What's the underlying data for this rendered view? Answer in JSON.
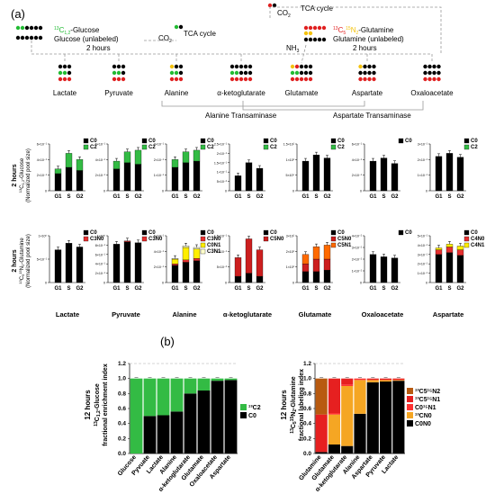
{
  "panel_a": {
    "label": "(a)",
    "glucose_title": "Glucose (unlabeled)",
    "glucose_label_sup": "13",
    "glucose_label_rest": "C",
    "glucose_label_sub": "1,2",
    "glucose_label_tail": "-Glucose",
    "glucose_time": "2 hours",
    "glutamine_title": "Glutamine (unlabeled)",
    "glutamine_label_sup1": "13",
    "glutamine_label_c": "C",
    "glutamine_label_sub1": "5",
    "glutamine_label_sup2": "15",
    "glutamine_label_n": "N",
    "glutamine_label_sub2": "2",
    "glutamine_label_tail": "-Glutamine",
    "glutamine_time": "2 hours",
    "co2": "CO",
    "co2_sub": "2",
    "tca_cycle_1": "TCA cycle",
    "tca_cycle_2": "TCA cycle",
    "nh3": "NH",
    "nh3_sub": "3",
    "metabolites": [
      "Lactate",
      "Pyruvate",
      "Alanine",
      "α-ketoglutarate",
      "Glutamate",
      "Aspartate",
      "Oxaloacetate"
    ],
    "alanine_transaminase": "Alanine Transaminase",
    "aspartate_transaminase": "Aspartate Transaminase",
    "row1_label": "2 hours",
    "row1_axis": "Glucose",
    "row1_axis_sup": "13",
    "row1_axis_c": "C",
    "row1_axis_sub": "1,2",
    "row1_axis_norm": "(Normalized pool size)",
    "row2_label": "2 hours",
    "row2_axis": "Glutamine",
    "row2_axis_sup1": "13",
    "row2_axis_c": "C",
    "row2_axis_sub1": "5",
    "row2_axis_sup2": "15",
    "row2_axis_n": "N",
    "row2_axis_sub2": "2",
    "col_labels": [
      "Lactate",
      "Pyruvate",
      "Alanine",
      "α-ketoglutarate",
      "Glutamate",
      "Oxaloacetate",
      "Aspartate"
    ],
    "phases": [
      "G1",
      "S",
      "G2"
    ]
  },
  "panel_b": {
    "label": "(b)",
    "left_title": "12 hours",
    "left_axis_sup": "13",
    "left_axis_c": "C",
    "left_axis_sub": "1,2",
    "left_axis_tail": "-Glucose",
    "left_axis_line2": "fractional enrichment index",
    "right_title": "12 hours",
    "right_axis_sup1": "13",
    "right_axis_c": "C",
    "right_axis_sub1": "5",
    "right_axis_sup2": "15",
    "right_axis_n": "N",
    "right_axis_sub2": "2",
    "right_axis_tail": "-Glutamine",
    "right_axis_line2": "fractional labeling index"
  },
  "colors": {
    "c0": "#000000",
    "c2": "#33bb44",
    "c3n0": "#e53030",
    "c0n1": "#ffee00",
    "c3n1": "#ffffcc",
    "c5n0": "#cc1f1f",
    "c5n1": "#ff6a00",
    "c4n0": "#e53030",
    "c4n1": "#ffee00",
    "c5n2": "#b85a10",
    "c5n1b": "#e62020",
    "c0n1b": "#ff3333",
    "cn0": "#f5a623",
    "c0n0": "#000000",
    "red_dot": "#e02020",
    "green_dot": "#22bb33",
    "yellow_dot": "#f4c20d"
  },
  "chart_data": [
    {
      "type": "bar",
      "id": "a-glc-lactate",
      "categories": [
        "G1",
        "S",
        "G2"
      ],
      "ylim": [
        0,
        6
      ],
      "y_tick_labels": [
        "0",
        "2×10⁻¹",
        "4×10⁻¹",
        "6×10⁻¹"
      ],
      "series": [
        {
          "name": "C0",
          "values": [
            2.2,
            3.0,
            2.6
          ]
        },
        {
          "name": "C2",
          "values": [
            0.6,
            1.8,
            1.4
          ]
        }
      ]
    },
    {
      "type": "bar",
      "id": "a-glc-pyruvate",
      "categories": [
        "G1",
        "S",
        "G2"
      ],
      "ylim": [
        0,
        6
      ],
      "y_tick_labels": [
        "0",
        "2×10⁻¹",
        "4×10⁻¹",
        "6×10⁻¹"
      ],
      "series": [
        {
          "name": "C0",
          "values": [
            2.8,
            3.6,
            3.4
          ]
        },
        {
          "name": "C2",
          "values": [
            1.0,
            1.4,
            1.8
          ]
        }
      ]
    },
    {
      "type": "bar",
      "id": "a-glc-alanine",
      "categories": [
        "G1",
        "S",
        "G2"
      ],
      "ylim": [
        0,
        3
      ],
      "y_tick_labels": [
        "0",
        "1×10⁻¹",
        "2×10⁻¹",
        "3×10⁻¹"
      ],
      "series": [
        {
          "name": "C0",
          "values": [
            1.5,
            1.8,
            1.9
          ]
        },
        {
          "name": "C2",
          "values": [
            0.5,
            0.7,
            0.7
          ]
        }
      ]
    },
    {
      "type": "bar",
      "id": "a-glc-akg",
      "categories": [
        "G1",
        "S",
        "G2"
      ],
      "ylim": [
        0,
        2.5
      ],
      "y_tick_labels": [
        "0",
        "5×10⁻²",
        "1×10⁻¹",
        "1.5×10⁻¹",
        "2×10⁻¹",
        "2.5×10⁻¹"
      ],
      "series": [
        {
          "name": "C0",
          "values": [
            0.8,
            1.5,
            1.2
          ]
        },
        {
          "name": "C2",
          "values": [
            0,
            0,
            0
          ]
        }
      ]
    },
    {
      "type": "bar",
      "id": "a-glc-glutamate",
      "categories": [
        "G1",
        "S",
        "G2"
      ],
      "ylim": [
        0,
        1.5
      ],
      "y_tick_labels": [
        "0",
        "5×10⁰",
        "1×10¹",
        "1.5×10¹"
      ],
      "series": [
        {
          "name": "C0",
          "values": [
            0.95,
            1.15,
            1.05
          ]
        },
        {
          "name": "C2",
          "values": [
            0,
            0,
            0
          ]
        }
      ]
    },
    {
      "type": "bar",
      "id": "a-glc-oxaloacetate",
      "categories": [
        "G1",
        "S",
        "G2"
      ],
      "ylim": [
        0,
        6
      ],
      "y_tick_labels": [
        "0",
        "2×10⁻¹",
        "4×10⁻¹",
        "6×10⁻¹"
      ],
      "series": [
        {
          "name": "C0",
          "values": [
            3.8,
            4.2,
            3.5
          ]
        }
      ]
    },
    {
      "type": "bar",
      "id": "a-glc-aspartate",
      "categories": [
        "G1",
        "S",
        "G2"
      ],
      "ylim": [
        0,
        3
      ],
      "y_tick_labels": [
        "0",
        "1×10⁻¹",
        "2×10⁻¹",
        "3×10⁻¹"
      ],
      "series": [
        {
          "name": "C0",
          "values": [
            2.2,
            2.4,
            2.15
          ]
        },
        {
          "name": "C2",
          "values": [
            0,
            0,
            0
          ]
        }
      ]
    },
    {
      "type": "bar",
      "id": "a-gln-lactate",
      "categories": [
        "G1",
        "S",
        "G2"
      ],
      "ylim": [
        0,
        10
      ],
      "y_tick_labels": [
        "0",
        "5×10⁻¹",
        "1×10⁰"
      ],
      "series": [
        {
          "name": "C0",
          "values": [
            7.0,
            8.4,
            7.6
          ]
        },
        {
          "name": "C3N0",
          "values": [
            0,
            0,
            0
          ]
        }
      ]
    },
    {
      "type": "bar",
      "id": "a-gln-pyruvate",
      "categories": [
        "G1",
        "S",
        "G2"
      ],
      "ylim": [
        0,
        10
      ],
      "y_tick_labels": [
        "0",
        "2×10⁻¹",
        "4×10⁻¹",
        "6×10⁻¹",
        "8×10⁻¹",
        "1×10⁰"
      ],
      "series": [
        {
          "name": "C0",
          "values": [
            8.2,
            8.7,
            8.5
          ]
        },
        {
          "name": "C3N0",
          "values": [
            0,
            0.2,
            0
          ]
        }
      ]
    },
    {
      "type": "bar",
      "id": "a-gln-alanine",
      "categories": [
        "G1",
        "S",
        "G2"
      ],
      "ylim": [
        0,
        6
      ],
      "y_tick_labels": [
        "0",
        "2×10⁻¹",
        "4×10⁻¹",
        "6×10⁻¹"
      ],
      "series": [
        {
          "name": "C0",
          "values": [
            2.2,
            2.6,
            2.8
          ]
        },
        {
          "name": "C3N0",
          "values": [
            0.2,
            0.3,
            0.3
          ]
        },
        {
          "name": "C0N1",
          "values": [
            0.6,
            1.6,
            1.2
          ]
        },
        {
          "name": "C3N1",
          "values": [
            0.1,
            0.2,
            0.2
          ]
        }
      ]
    },
    {
      "type": "bar",
      "id": "a-gln-akg",
      "categories": [
        "G1",
        "S",
        "G2"
      ],
      "ylim": [
        0,
        1.5
      ],
      "y_tick_labels": [
        "0",
        "5×10⁻²",
        "1×10⁻¹",
        "1.5×10⁻¹"
      ],
      "series": [
        {
          "name": "C0",
          "values": [
            0.2,
            0.3,
            0.2
          ]
        },
        {
          "name": "C5N0",
          "values": [
            0.6,
            1.1,
            0.85
          ]
        }
      ]
    },
    {
      "type": "bar",
      "id": "a-gln-glutamate",
      "categories": [
        "G1",
        "S",
        "G2"
      ],
      "ylim": [
        0,
        3
      ],
      "y_tick_labels": [
        "0",
        "1×10¹",
        "2×10¹",
        "3×10¹"
      ],
      "series": [
        {
          "name": "C0",
          "values": [
            0.7,
            0.7,
            0.8
          ]
        },
        {
          "name": "C5N0",
          "values": [
            0.5,
            0.8,
            0.7
          ]
        },
        {
          "name": "C5N1",
          "values": [
            0.6,
            0.8,
            0.9
          ]
        }
      ]
    },
    {
      "type": "bar",
      "id": "a-gln-oxaloacetate",
      "categories": [
        "G1",
        "S",
        "G2"
      ],
      "ylim": [
        0,
        4
      ],
      "y_tick_labels": [
        "0",
        "1×10⁻²",
        "2×10⁻²",
        "3×10⁻²",
        "4×10⁻²"
      ],
      "series": [
        {
          "name": "C0",
          "values": [
            2.4,
            2.2,
            2.1
          ]
        }
      ]
    },
    {
      "type": "bar",
      "id": "a-gln-aspartate",
      "categories": [
        "G1",
        "S",
        "G2"
      ],
      "ylim": [
        0,
        5
      ],
      "y_tick_labels": [
        "0",
        "1×10⁻¹",
        "2×10⁻¹",
        "3×10⁻¹",
        "4×10⁻¹",
        "5×10⁻¹"
      ],
      "series": [
        {
          "name": "C0",
          "values": [
            3.0,
            3.2,
            2.9
          ]
        },
        {
          "name": "C4N0",
          "values": [
            0.5,
            0.6,
            0.6
          ]
        },
        {
          "name": "C4N1",
          "values": [
            0.2,
            0.3,
            0.4
          ]
        }
      ]
    },
    {
      "type": "bar",
      "id": "b-glucose",
      "categories": [
        "Glucose",
        "Pyvuate",
        "Lactate",
        "Alanine",
        "α-ketoglutarate",
        "Glutamate",
        "Oxaloacetate",
        "Aspartate"
      ],
      "ylim": [
        0,
        1.2
      ],
      "y_tick_labels": [
        "0.0",
        "0.2",
        "0.4",
        "0.6",
        "0.8",
        "1.0",
        "1.2"
      ],
      "series": [
        {
          "name": "C0",
          "values": [
            0.0,
            0.5,
            0.51,
            0.56,
            0.8,
            0.84,
            0.97,
            0.98
          ]
        },
        {
          "name": "¹³C2",
          "values": [
            1.0,
            0.5,
            0.49,
            0.44,
            0.2,
            0.16,
            0.03,
            0.02
          ]
        }
      ]
    },
    {
      "type": "bar",
      "id": "b-glutamine",
      "categories": [
        "Glutamine",
        "Glutamate",
        "α-ketoglutarate",
        "Alanine",
        "Aspartate",
        "Pyruvate",
        "Lactate"
      ],
      "ylim": [
        0,
        1.2
      ],
      "y_tick_labels": [
        "0.0",
        "0.2",
        "0.4",
        "0.6",
        "0.8",
        "1.0",
        "1.2"
      ],
      "series": [
        {
          "name": "C0N0",
          "values": [
            0.02,
            0.12,
            0.1,
            0.53,
            0.95,
            0.96,
            0.97
          ]
        },
        {
          "name": "¹³CN0",
          "values": [
            0.0,
            0.4,
            0.8,
            0.45,
            0.03,
            0.02,
            0.01
          ]
        },
        {
          "name": "C0¹⁵N1",
          "values": [
            0.0,
            0.02,
            0.02,
            0.02,
            0.0,
            0.0,
            0.0
          ]
        },
        {
          "name": "¹³C5¹⁵N1",
          "values": [
            0.5,
            0.46,
            0.08,
            0.0,
            0.02,
            0.02,
            0.02
          ]
        },
        {
          "name": "¹³C5¹⁵N2",
          "values": [
            0.48,
            0.0,
            0.0,
            0.0,
            0.0,
            0.0,
            0.0
          ]
        }
      ]
    }
  ]
}
